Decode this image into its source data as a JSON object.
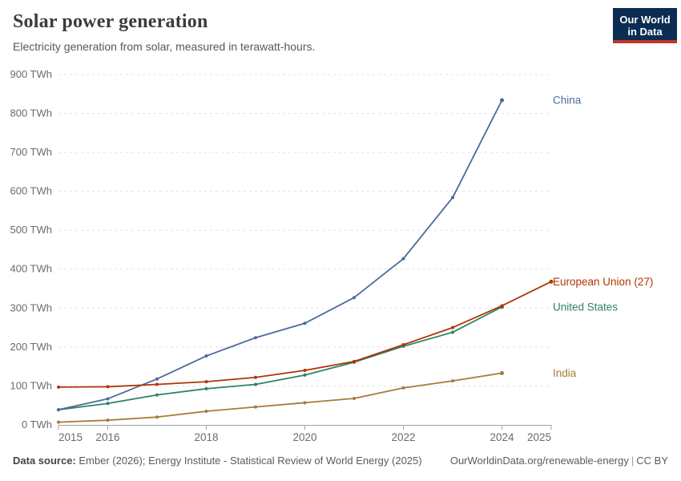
{
  "header": {
    "title": "Solar power generation",
    "subtitle": "Electricity generation from solar, measured in terawatt-hours."
  },
  "logo": {
    "line1": "Our World",
    "line2": "in Data",
    "bg_color": "#0C2D52",
    "stripe_color": "#C0352B"
  },
  "chart_data": {
    "type": "line",
    "title": "Solar power generation",
    "ylabel": "",
    "xlabel": "",
    "unit": "TWh",
    "y_tick_suffix": " TWh",
    "xlim": [
      2015,
      2025
    ],
    "ylim": [
      0,
      900
    ],
    "x_ticks": [
      2015,
      2016,
      2018,
      2020,
      2022,
      2024,
      2025
    ],
    "y_ticks": [
      0,
      100,
      200,
      300,
      400,
      500,
      600,
      700,
      800,
      900
    ],
    "grid": true,
    "legend_position": "right-end-labels",
    "series": [
      {
        "name": "India",
        "color": "#A87B39",
        "x": [
          2015,
          2016,
          2017,
          2018,
          2019,
          2020,
          2021,
          2022,
          2023,
          2024
        ],
        "values": [
          7,
          12,
          20,
          35,
          46,
          57,
          68,
          95,
          113,
          133
        ]
      },
      {
        "name": "United States",
        "color": "#2C8465",
        "x": [
          2015,
          2016,
          2017,
          2018,
          2019,
          2020,
          2021,
          2022,
          2023,
          2024
        ],
        "values": [
          39,
          55,
          77,
          93,
          104,
          128,
          161,
          202,
          238,
          303
        ]
      },
      {
        "name": "China",
        "color": "#4C6A9C",
        "x": [
          2015,
          2016,
          2017,
          2018,
          2019,
          2020,
          2021,
          2022,
          2023,
          2024
        ],
        "values": [
          39,
          67,
          118,
          177,
          224,
          261,
          327,
          427,
          584,
          834
        ]
      },
      {
        "name": "European Union (27)",
        "color": "#B13507",
        "x": [
          2015,
          2016,
          2017,
          2018,
          2019,
          2020,
          2021,
          2022,
          2023,
          2024,
          2025
        ],
        "values": [
          97,
          98,
          104,
          111,
          122,
          140,
          163,
          206,
          250,
          306,
          368
        ]
      }
    ]
  },
  "footer": {
    "source_label": "Data source:",
    "source_text": "Ember (2026); Energy Institute - Statistical Review of World Energy (2025)",
    "link_text": "OurWorldinData.org/renewable-energy",
    "separator": "|",
    "license": "CC BY"
  }
}
